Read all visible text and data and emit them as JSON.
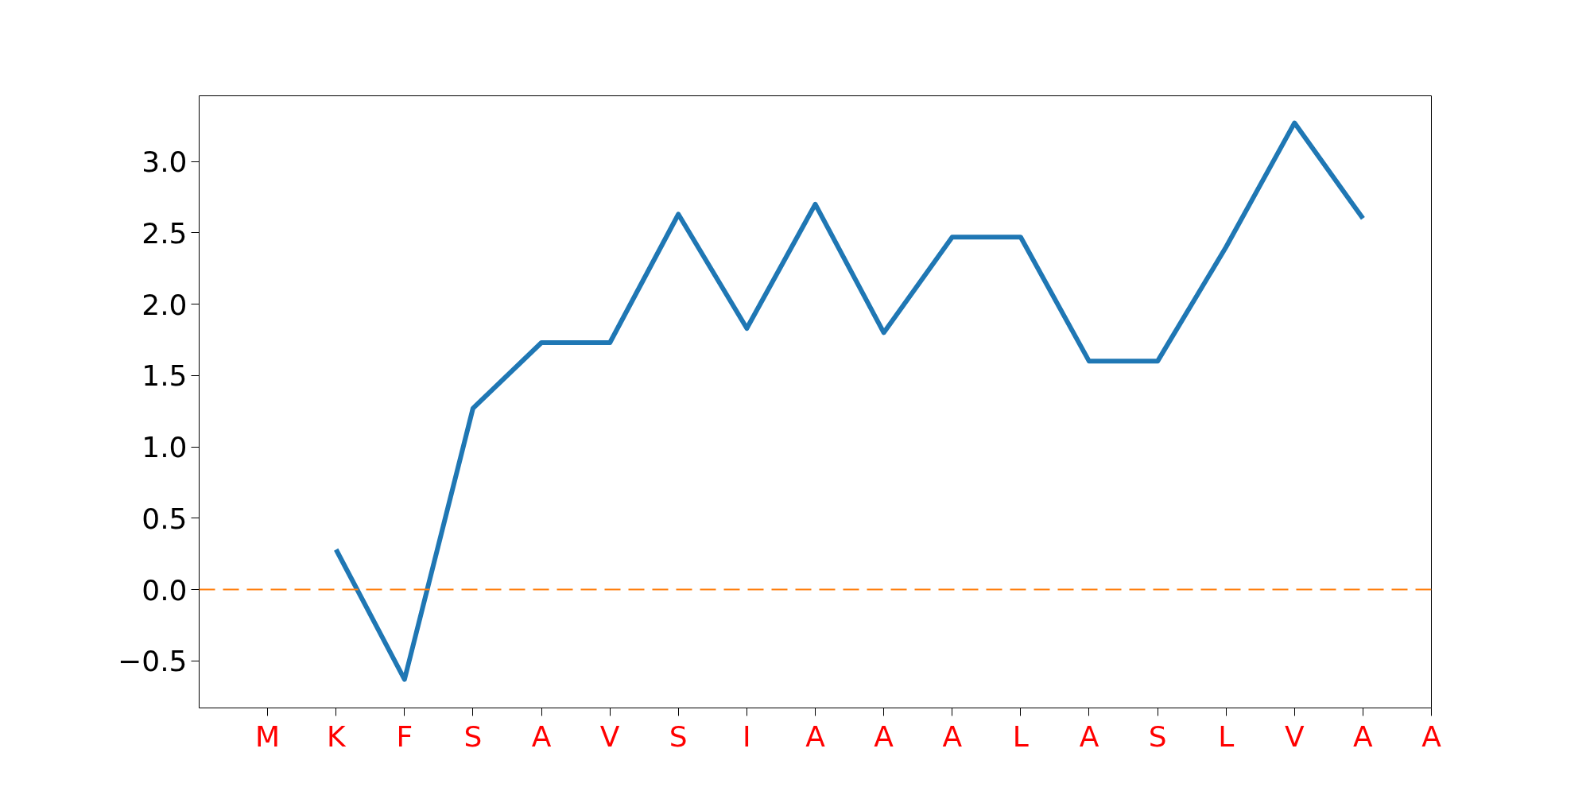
{
  "chart_data": {
    "type": "line",
    "categories": [
      "M",
      "K",
      "F",
      "S",
      "A",
      "V",
      "S",
      "I",
      "A",
      "A",
      "A",
      "L",
      "A",
      "S",
      "L",
      "V",
      "A",
      "A"
    ],
    "series": [
      {
        "color": "#1f77b4",
        "values": [
          null,
          0.28,
          -0.63,
          1.27,
          1.73,
          1.73,
          2.63,
          1.83,
          2.7,
          1.8,
          2.47,
          2.47,
          1.6,
          1.6,
          2.4,
          3.27,
          2.6,
          null
        ]
      }
    ],
    "ylim": [
      -0.83,
      3.46
    ],
    "yticks": [
      {
        "value": -0.5,
        "label": "−0.5"
      },
      {
        "value": 0,
        "label": "0.0"
      },
      {
        "value": 0.5,
        "label": "0.5"
      },
      {
        "value": 1,
        "label": "1.0"
      },
      {
        "value": 1.5,
        "label": "1.5"
      },
      {
        "value": 2,
        "label": "2.0"
      },
      {
        "value": 2.5,
        "label": "2.5"
      },
      {
        "value": 3,
        "label": "3.0"
      }
    ],
    "ref_lines": [
      {
        "axis": "y",
        "value": 0,
        "color": "#ff7f0e",
        "line_style": "dashed"
      }
    ],
    "grid": false,
    "marker": "none",
    "line_style": "solid"
  }
}
